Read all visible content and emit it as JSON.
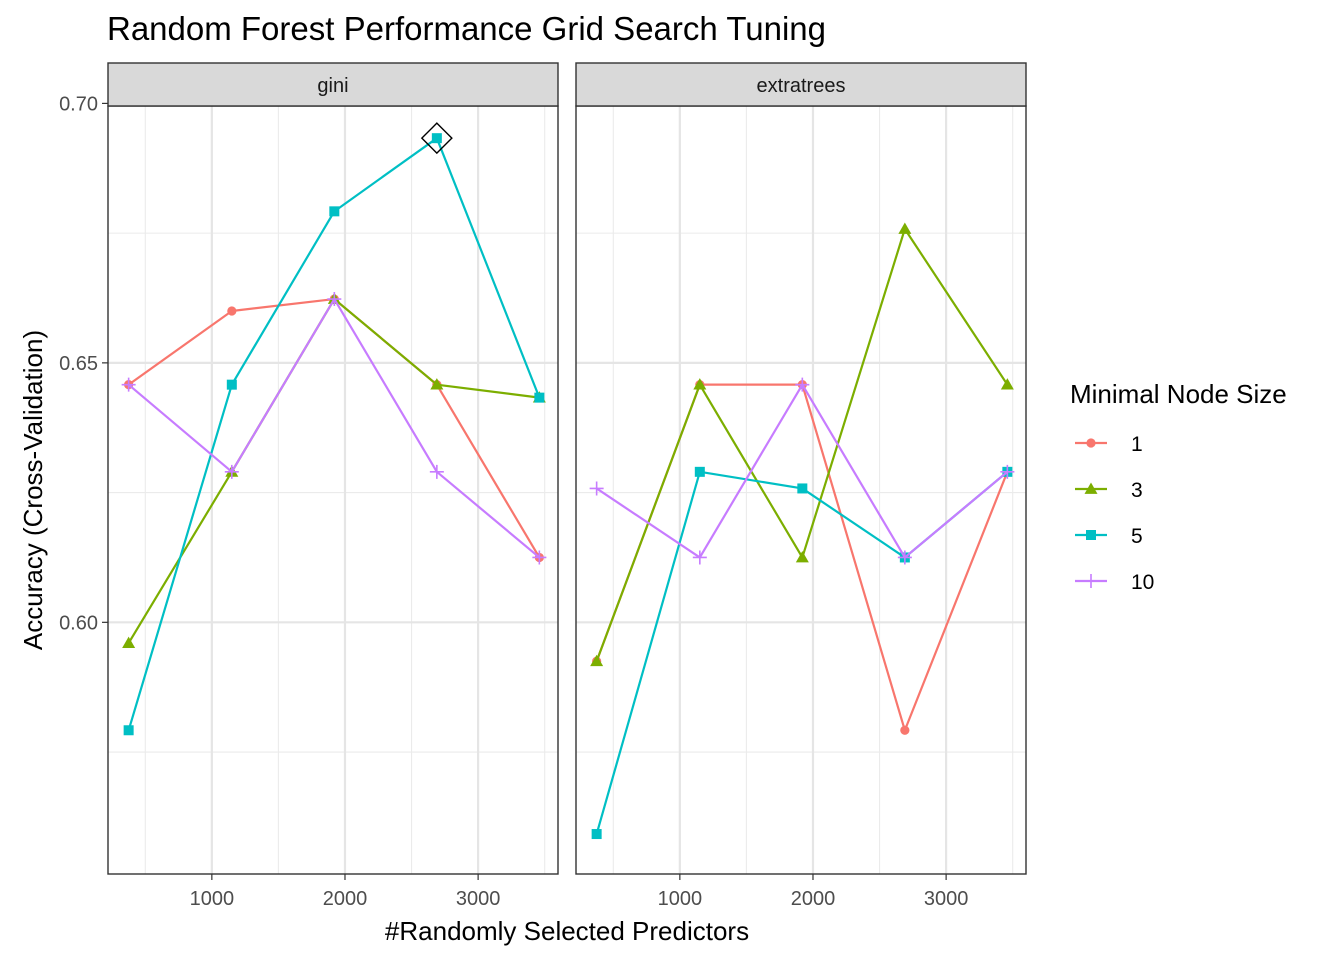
{
  "chart_data": {
    "type": "line",
    "title": "Random Forest Performance Grid Search Tuning",
    "xlabel": "#Randomly Selected Predictors",
    "ylabel": "Accuracy (Cross-Validation)",
    "xlim": [
      220,
      3600
    ],
    "ylim": [
      0.5515,
      0.6995
    ],
    "x_ticks": [
      1000,
      2000,
      3000
    ],
    "x_tick_labels": [
      "1000",
      "2000",
      "3000"
    ],
    "x_minor_ticks": [
      500,
      1500,
      2500,
      3500
    ],
    "y_ticks": [
      0.6,
      0.65,
      0.7
    ],
    "y_tick_labels": [
      "0.60",
      "0.65",
      "0.70"
    ],
    "y_minor_ticks": [
      0.575,
      0.625,
      0.675
    ],
    "grid": true,
    "legend": {
      "title": "Minimal Node Size",
      "position": "right"
    },
    "panels": [
      {
        "strip_label": "gini",
        "series": [
          {
            "name": "1",
            "color": "#F8766D",
            "shape": "circle",
            "x": [
              375,
              1150,
              1920,
              2690,
              3460
            ],
            "y": [
              0.6458,
              0.66,
              0.6623,
              0.6458,
              0.6125
            ]
          },
          {
            "name": "3",
            "color": "#7CAE00",
            "shape": "triangle",
            "x": [
              375,
              1150,
              1920,
              2690,
              3460
            ],
            "y": [
              0.596,
              0.629,
              0.6623,
              0.6458,
              0.6433
            ]
          },
          {
            "name": "5",
            "color": "#00BFC4",
            "shape": "square",
            "x": [
              375,
              1150,
              1920,
              2690,
              3460
            ],
            "y": [
              0.5792,
              0.6458,
              0.6792,
              0.6933,
              0.6433
            ]
          },
          {
            "name": "10",
            "color": "#C77CFF",
            "shape": "plus",
            "x": [
              375,
              1150,
              1920,
              2690,
              3460
            ],
            "y": [
              0.6458,
              0.629,
              0.6623,
              0.629,
              0.6125
            ]
          }
        ],
        "highlight": {
          "x": 2690,
          "y": 0.6933,
          "shape": "diamond"
        }
      },
      {
        "strip_label": "extratrees",
        "series": [
          {
            "name": "1",
            "color": "#F8766D",
            "shape": "circle",
            "x": [
              375,
              1150,
              1920,
              2690,
              3460
            ],
            "y": [
              0.5925,
              0.6458,
              0.6458,
              0.5792,
              0.629
            ]
          },
          {
            "name": "3",
            "color": "#7CAE00",
            "shape": "triangle",
            "x": [
              375,
              1150,
              1920,
              2690,
              3460
            ],
            "y": [
              0.5925,
              0.6458,
              0.6125,
              0.6758,
              0.6458
            ]
          },
          {
            "name": "5",
            "color": "#00BFC4",
            "shape": "square",
            "x": [
              375,
              1150,
              1920,
              2690,
              3460
            ],
            "y": [
              0.5592,
              0.629,
              0.6258,
              0.6125,
              0.629
            ]
          },
          {
            "name": "10",
            "color": "#C77CFF",
            "shape": "plus",
            "x": [
              375,
              1150,
              1920,
              2690,
              3460
            ],
            "y": [
              0.6258,
              0.6125,
              0.6458,
              0.6125,
              0.629
            ]
          }
        ]
      }
    ]
  }
}
